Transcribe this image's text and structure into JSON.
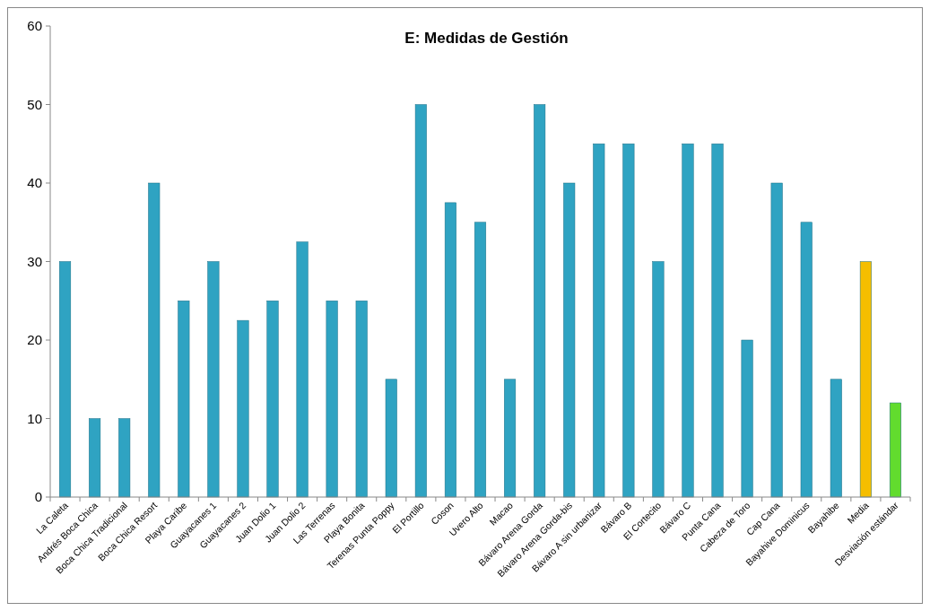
{
  "chart_data": {
    "type": "bar",
    "title": "E: Medidas de Gestión",
    "categories": [
      "La Caleta",
      "Andrés Boca Chica",
      "Boca Chica Tradicional",
      "Boca Chica Resort",
      "Playa Caribe",
      "Guayacanes 1",
      "Guayacanes 2",
      "Juan Dolio 1",
      "Juan Dolio 2",
      "Las Terrenas",
      "Playa Bonita",
      "Terenas Punta Poppy",
      "El Portillo",
      "Coson",
      "Uvero Alto",
      "Macao",
      "Bávaro Arena Gorda",
      "Bávaro Arena Gorda-bis",
      "Bávaro A sin urbanizar",
      "Bávaro B",
      "El Cortecito",
      "Bávaro C",
      "Punta Cana",
      "Cabeza de Toro",
      "Cap Cana",
      "Bayahive Dominicus",
      "Bayahibe",
      "Media",
      "Desviación estándar"
    ],
    "values": [
      30,
      10,
      10,
      40,
      25,
      30,
      22.5,
      25,
      32.5,
      25,
      25,
      15,
      50,
      37.5,
      35,
      15,
      50,
      40,
      45,
      45,
      30,
      45,
      45,
      20,
      40,
      35,
      15,
      30,
      12
    ],
    "colors": [
      "#2fa3c2",
      "#2fa3c2",
      "#2fa3c2",
      "#2fa3c2",
      "#2fa3c2",
      "#2fa3c2",
      "#2fa3c2",
      "#2fa3c2",
      "#2fa3c2",
      "#2fa3c2",
      "#2fa3c2",
      "#2fa3c2",
      "#2fa3c2",
      "#2fa3c2",
      "#2fa3c2",
      "#2fa3c2",
      "#2fa3c2",
      "#2fa3c2",
      "#2fa3c2",
      "#2fa3c2",
      "#2fa3c2",
      "#2fa3c2",
      "#2fa3c2",
      "#2fa3c2",
      "#2fa3c2",
      "#2fa3c2",
      "#2fa3c2",
      "#f5be00",
      "#62dc2e"
    ],
    "ylim": [
      0,
      60
    ],
    "yticks": [
      0,
      10,
      20,
      30,
      40,
      50,
      60
    ],
    "grid": false
  }
}
